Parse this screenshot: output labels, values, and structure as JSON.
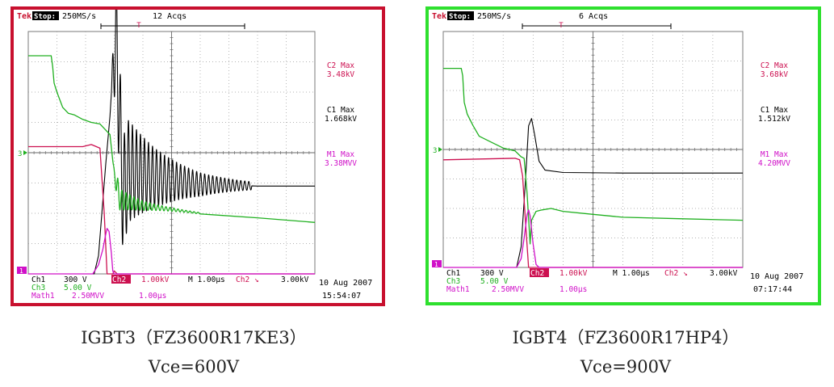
{
  "chart_data": [
    {
      "type": "line",
      "title": "IGBT3 (FZ3600R17KE3)",
      "subtitle": "Vce=600V",
      "caption_line1": "IGBT3（FZ3600R17KE3）",
      "caption_line2": "Vce=600V",
      "header": {
        "brand": "Tek",
        "mode": "Stop:",
        "rate": "250MS/s",
        "acqs": "12 Acqs"
      },
      "trigger_marker": "T",
      "x_unit": "µs",
      "x_per_div": 1.0,
      "x_divisions": 10,
      "ylim_divisions": [
        -4,
        4
      ],
      "grid": true,
      "channel_markers": {
        "ch3": "3",
        "ch1": "1"
      },
      "readouts": [
        {
          "label": "C2 Max",
          "value": "3.48kV",
          "color": "#cc1050"
        },
        {
          "label": "C1 Max",
          "value": "1.668kV",
          "color": "#000000"
        },
        {
          "label": "M1 Max",
          "value": "3.38MVV",
          "color": "#d010c8"
        }
      ],
      "bottom_rows": [
        [
          {
            "text": "Ch1",
            "color": "#000000"
          },
          {
            "text": "300 V",
            "color": "#000000"
          },
          {
            "text": "Ch2",
            "color": "#ffffff",
            "bg": "#cc1050"
          },
          {
            "text": "1.00kV",
            "color": "#cc1050"
          },
          {
            "text": "M 1.00µs",
            "color": "#000000"
          },
          {
            "text": "Ch2 ↘",
            "color": "#cc1050"
          },
          {
            "text": "3.00kV",
            "color": "#000000"
          }
        ],
        [
          {
            "text": "Ch3",
            "color": "#20b020"
          },
          {
            "text": "5.00 V",
            "color": "#20b020"
          }
        ],
        [
          {
            "text": "Math1",
            "color": "#d010c8"
          },
          {
            "text": "2.50MVV",
            "color": "#d010c8"
          },
          {
            "text": "1.00µs",
            "color": "#d010c8"
          }
        ]
      ],
      "date": "10 Aug 2007",
      "time": "15:54:07",
      "series": [
        {
          "key": "ch1",
          "name": "Ch1",
          "color": "#000000",
          "points": [
            [
              0,
              -4
            ],
            [
              2.3,
              -4
            ],
            [
              2.45,
              -3.4
            ],
            [
              2.7,
              -0.4
            ],
            [
              2.85,
              1.2
            ],
            [
              3.0,
              3.4
            ],
            [
              3.07,
              3.8
            ],
            [
              3.15,
              2.0
            ],
            [
              3.3,
              -1.4
            ],
            [
              3.5,
              -0.6
            ],
            [
              4.5,
              -0.85
            ],
            [
              6,
              -1.05
            ],
            [
              8,
              -1.1
            ],
            [
              10,
              -1.1
            ]
          ],
          "ringing": {
            "start": 2.9,
            "end": 7.8,
            "center": -0.9,
            "amp0": 2.4,
            "decay": 1.7,
            "period": 0.14
          }
        },
        {
          "key": "ch2",
          "name": "Ch2",
          "color": "#cc1050",
          "points": [
            [
              0,
              0.2
            ],
            [
              1.9,
              0.2
            ],
            [
              2.2,
              0.27
            ],
            [
              2.5,
              0.15
            ],
            [
              2.65,
              -2.0
            ],
            [
              2.75,
              -4.0
            ],
            [
              2.95,
              -4.0
            ],
            [
              3.0,
              -3.9
            ],
            [
              3.1,
              -4.0
            ],
            [
              10,
              -4.0
            ]
          ]
        },
        {
          "key": "ch3",
          "name": "Ch3",
          "color": "#20b020",
          "points": [
            [
              0,
              3.2
            ],
            [
              0.8,
              3.2
            ],
            [
              0.85,
              2.85
            ],
            [
              0.9,
              2.3
            ],
            [
              1.0,
              2.0
            ],
            [
              1.2,
              1.5
            ],
            [
              1.4,
              1.3
            ],
            [
              1.6,
              1.25
            ],
            [
              1.9,
              1.1
            ],
            [
              2.2,
              1.0
            ],
            [
              2.5,
              0.95
            ],
            [
              2.7,
              0.75
            ],
            [
              2.85,
              0.6
            ],
            [
              3.0,
              -0.7
            ],
            [
              3.2,
              -1.55
            ],
            [
              4,
              -1.75
            ],
            [
              6,
              -2.0
            ],
            [
              8,
              -2.15
            ],
            [
              10,
              -2.3
            ]
          ],
          "ringing": {
            "start": 2.95,
            "end": 6.0,
            "center": -1.6,
            "amp0": 0.45,
            "decay": 1.0,
            "period": 0.14
          }
        },
        {
          "key": "math1",
          "name": "Math1",
          "color": "#d010c8",
          "points": [
            [
              0,
              -4
            ],
            [
              2.25,
              -4
            ],
            [
              2.45,
              -3.7
            ],
            [
              2.6,
              -3.2
            ],
            [
              2.7,
              -2.7
            ],
            [
              2.75,
              -2.5
            ],
            [
              2.82,
              -2.6
            ],
            [
              2.9,
              -3.3
            ],
            [
              2.95,
              -3.9
            ],
            [
              3.0,
              -4
            ],
            [
              10,
              -4
            ]
          ]
        }
      ]
    },
    {
      "type": "line",
      "title": "IGBT4 (FZ3600R17HP4)",
      "subtitle": "Vce=900V",
      "caption_line1": "IGBT4（FZ3600R17HP4）",
      "caption_line2": "Vce=900V",
      "header": {
        "brand": "Tek",
        "mode": "Stop:",
        "rate": "250MS/s",
        "acqs": "6 Acqs"
      },
      "trigger_marker": "T",
      "x_unit": "µs",
      "x_per_div": 1.0,
      "x_divisions": 10,
      "ylim_divisions": [
        -4,
        4
      ],
      "grid": true,
      "channel_markers": {
        "ch3": "3",
        "ch1": "1"
      },
      "readouts": [
        {
          "label": "C2 Max",
          "value": "3.68kV",
          "color": "#cc1050"
        },
        {
          "label": "C1 Max",
          "value": "1.512kV",
          "color": "#000000"
        },
        {
          "label": "M1 Max",
          "value": "4.20MVV",
          "color": "#d010c8"
        }
      ],
      "bottom_rows": [
        [
          {
            "text": "Ch1",
            "color": "#000000"
          },
          {
            "text": "300 V",
            "color": "#000000"
          },
          {
            "text": "Ch2",
            "color": "#ffffff",
            "bg": "#cc1050"
          },
          {
            "text": "1.00kV",
            "color": "#cc1050"
          },
          {
            "text": "M 1.00µs",
            "color": "#000000"
          },
          {
            "text": "Ch2 ↘",
            "color": "#cc1050"
          },
          {
            "text": "3.00kV",
            "color": "#000000"
          }
        ],
        [
          {
            "text": "Ch3",
            "color": "#20b020"
          },
          {
            "text": "5.00 V",
            "color": "#20b020"
          }
        ],
        [
          {
            "text": "Math1",
            "color": "#d010c8"
          },
          {
            "text": "2.50MVV",
            "color": "#d010c8"
          },
          {
            "text": "1.00µs",
            "color": "#d010c8"
          }
        ]
      ],
      "date": "10 Aug 2007",
      "time": "07:17:44",
      "series": [
        {
          "key": "ch1",
          "name": "Ch1",
          "color": "#000000",
          "points": [
            [
              0,
              -4
            ],
            [
              2.45,
              -4
            ],
            [
              2.6,
              -3.3
            ],
            [
              2.75,
              -1.0
            ],
            [
              2.85,
              0.8
            ],
            [
              2.95,
              1.05
            ],
            [
              3.05,
              0.5
            ],
            [
              3.2,
              -0.4
            ],
            [
              3.4,
              -0.7
            ],
            [
              4,
              -0.78
            ],
            [
              6,
              -0.8
            ],
            [
              8,
              -0.8
            ],
            [
              10,
              -0.8
            ]
          ]
        },
        {
          "key": "ch2",
          "name": "Ch2",
          "color": "#cc1050",
          "points": [
            [
              0,
              -0.35
            ],
            [
              2.4,
              -0.3
            ],
            [
              2.55,
              -0.35
            ],
            [
              2.65,
              -0.9
            ],
            [
              2.75,
              -2.5
            ],
            [
              2.85,
              -4.0
            ],
            [
              10,
              -4.0
            ]
          ]
        },
        {
          "key": "ch3",
          "name": "Ch3",
          "color": "#20b020",
          "points": [
            [
              0,
              2.75
            ],
            [
              0.6,
              2.75
            ],
            [
              0.65,
              2.5
            ],
            [
              0.7,
              1.6
            ],
            [
              0.8,
              1.2
            ],
            [
              1.0,
              0.8
            ],
            [
              1.2,
              0.45
            ],
            [
              1.6,
              0.25
            ],
            [
              2.0,
              0.05
            ],
            [
              2.4,
              -0.05
            ],
            [
              2.6,
              -0.25
            ],
            [
              2.7,
              -0.3
            ],
            [
              2.8,
              -1.5
            ],
            [
              2.9,
              -3.2
            ],
            [
              2.95,
              -2.4
            ],
            [
              3.1,
              -2.1
            ],
            [
              3.3,
              -2.05
            ],
            [
              3.6,
              -2.0
            ],
            [
              4,
              -2.1
            ],
            [
              5,
              -2.2
            ],
            [
              6,
              -2.3
            ],
            [
              8,
              -2.35
            ],
            [
              10,
              -2.4
            ]
          ]
        },
        {
          "key": "math1",
          "name": "Math1",
          "color": "#d010c8",
          "points": [
            [
              0,
              -4
            ],
            [
              2.45,
              -4
            ],
            [
              2.6,
              -3.7
            ],
            [
              2.7,
              -3.0
            ],
            [
              2.8,
              -2.2
            ],
            [
              2.85,
              -2.05
            ],
            [
              2.9,
              -2.25
            ],
            [
              3.0,
              -3.2
            ],
            [
              3.1,
              -3.9
            ],
            [
              3.2,
              -4
            ],
            [
              10,
              -4
            ]
          ]
        }
      ]
    }
  ]
}
